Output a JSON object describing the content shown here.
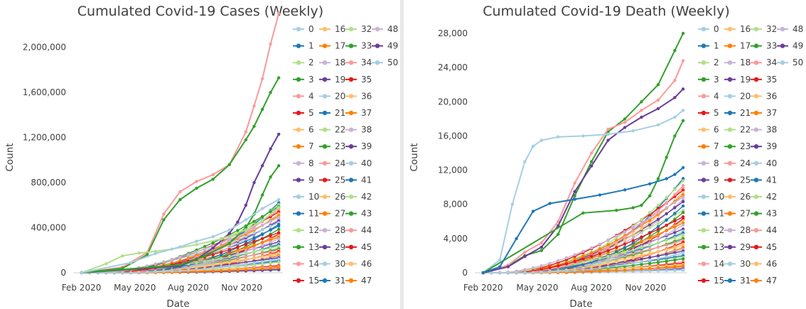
{
  "chart_data": [
    {
      "type": "line",
      "title": "Cumulated Covid-19 Cases (Weekly)",
      "xlabel": "Date",
      "ylabel": "Count",
      "xlim": [
        0,
        51
      ],
      "ylim": [
        0,
        2200000
      ],
      "yticks": [
        0,
        400000,
        800000,
        1200000,
        1600000,
        2000000
      ],
      "ytick_labels": [
        "0",
        "400,000",
        "800,000",
        "1,200,000",
        "1,600,000",
        "2,000,000"
      ],
      "xticks": [
        2,
        15,
        28,
        41
      ],
      "xtick_labels": [
        "Feb 2020",
        "May 2020",
        "Aug 2020",
        "Nov 2020"
      ],
      "legend": [
        "0",
        "1",
        "2",
        "3",
        "4",
        "5",
        "6",
        "7",
        "8",
        "9",
        "10",
        "11",
        "12",
        "13",
        "14",
        "15",
        "16",
        "17",
        "18",
        "19",
        "20",
        "21",
        "22",
        "23",
        "24",
        "25",
        "26",
        "27",
        "28",
        "29",
        "30",
        "31",
        "32",
        "33",
        "34",
        "35",
        "36",
        "37",
        "38",
        "39",
        "40",
        "41",
        "42",
        "43",
        "44",
        "45",
        "46",
        "47",
        "48",
        "49",
        "50"
      ],
      "key_series": [
        {
          "name": "34",
          "x": [
            2,
            12,
            18,
            22,
            26,
            30,
            34,
            38,
            42,
            44,
            46,
            48,
            50
          ],
          "y": [
            0,
            50000,
            180000,
            520000,
            720000,
            810000,
            870000,
            960000,
            1250000,
            1480000,
            1720000,
            2030000,
            2300000
          ]
        },
        {
          "name": "3",
          "x": [
            2,
            12,
            18,
            22,
            26,
            30,
            34,
            38,
            42,
            44,
            46,
            48,
            50
          ],
          "y": [
            0,
            40000,
            160000,
            470000,
            650000,
            750000,
            830000,
            960000,
            1180000,
            1300000,
            1450000,
            1600000,
            1730000
          ]
        },
        {
          "name": "49",
          "x": [
            2,
            26,
            30,
            34,
            38,
            40,
            42,
            44,
            46,
            48,
            50
          ],
          "y": [
            0,
            60000,
            120000,
            220000,
            350000,
            450000,
            600000,
            800000,
            950000,
            1100000,
            1230000
          ]
        },
        {
          "name": "43",
          "x": [
            2,
            26,
            32,
            38,
            42,
            44,
            46,
            48,
            50
          ],
          "y": [
            0,
            70000,
            150000,
            260000,
            400000,
            520000,
            690000,
            850000,
            950000
          ]
        },
        {
          "name": "12",
          "x": [
            2,
            8,
            12,
            16,
            20,
            24,
            30,
            36,
            42,
            46,
            50
          ],
          "y": [
            0,
            80000,
            150000,
            175000,
            190000,
            210000,
            250000,
            300000,
            380000,
            460000,
            580000
          ]
        },
        {
          "name": "40",
          "x": [
            2,
            14,
            20,
            26,
            30,
            34,
            38,
            42,
            46,
            50
          ],
          "y": [
            0,
            90000,
            170000,
            230000,
            280000,
            320000,
            380000,
            470000,
            570000,
            650000
          ]
        }
      ]
    },
    {
      "type": "line",
      "title": "Cumulated Covid-19 Death (Weekly)",
      "xlabel": "Date",
      "ylabel": "Count",
      "xlim": [
        0,
        51
      ],
      "ylim": [
        0,
        29000
      ],
      "yticks": [
        0,
        4000,
        8000,
        12000,
        16000,
        20000,
        24000,
        28000
      ],
      "ytick_labels": [
        "0",
        "4,000",
        "8,000",
        "12,000",
        "16,000",
        "20,000",
        "24,000",
        "28,000"
      ],
      "xticks": [
        2,
        15,
        28,
        41
      ],
      "xtick_labels": [
        "Feb 2020",
        "May 2020",
        "Aug 2020",
        "Nov 2020"
      ],
      "legend": [
        "0",
        "1",
        "2",
        "3",
        "4",
        "5",
        "6",
        "7",
        "8",
        "9",
        "10",
        "11",
        "12",
        "13",
        "14",
        "15",
        "16",
        "17",
        "18",
        "19",
        "20",
        "21",
        "22",
        "23",
        "24",
        "25",
        "26",
        "27",
        "28",
        "29",
        "30",
        "31",
        "32",
        "33",
        "34",
        "35",
        "36",
        "37",
        "38",
        "39",
        "40",
        "41",
        "42",
        "43",
        "44",
        "45",
        "46",
        "47",
        "48",
        "49",
        "50"
      ],
      "key_series": [
        {
          "name": "33",
          "x": [
            2,
            8,
            12,
            16,
            20,
            24,
            28,
            32,
            36,
            40,
            44,
            48,
            50
          ],
          "y": [
            0,
            800,
            2000,
            2600,
            4500,
            9000,
            13000,
            16500,
            18000,
            20000,
            22000,
            26000,
            28000
          ]
        },
        {
          "name": "34",
          "x": [
            2,
            8,
            12,
            16,
            20,
            24,
            28,
            32,
            36,
            40,
            44,
            48,
            50
          ],
          "y": [
            0,
            900,
            2400,
            3500,
            6000,
            10500,
            14000,
            16800,
            17600,
            19000,
            20200,
            22500,
            24800
          ]
        },
        {
          "name": "49",
          "x": [
            2,
            8,
            12,
            16,
            20,
            24,
            28,
            32,
            36,
            40,
            44,
            48,
            50
          ],
          "y": [
            0,
            700,
            1900,
            3000,
            5500,
            9500,
            12500,
            15500,
            17000,
            18200,
            19200,
            20500,
            21500
          ]
        },
        {
          "name": "30",
          "x": [
            2,
            6,
            9,
            12,
            14,
            16,
            20,
            26,
            32,
            38,
            44,
            48,
            50
          ],
          "y": [
            0,
            1500,
            8000,
            13000,
            14800,
            15500,
            15900,
            16000,
            16200,
            16600,
            17300,
            18200,
            19000
          ]
        },
        {
          "name": "3",
          "x": [
            2,
            26,
            34,
            38,
            40,
            42,
            44,
            46,
            48,
            50
          ],
          "y": [
            0,
            7000,
            7300,
            7600,
            7900,
            9000,
            11000,
            13500,
            16000,
            17800
          ]
        },
        {
          "name": "1",
          "x": [
            2,
            6,
            10,
            14,
            18,
            24,
            30,
            36,
            42,
            46,
            48,
            50
          ],
          "y": [
            0,
            700,
            4000,
            7200,
            8100,
            8600,
            9100,
            9700,
            10400,
            11000,
            11500,
            12300
          ]
        }
      ]
    }
  ]
}
